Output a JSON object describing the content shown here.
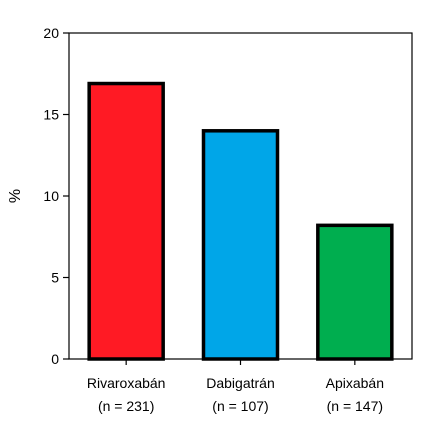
{
  "chart_data": {
    "type": "bar",
    "categories": [
      "Rivaroxabán",
      "Dabigatrán",
      "Apixabán"
    ],
    "category_sublabels": [
      "(n = 231)",
      "(n = 107)",
      "(n = 147)"
    ],
    "values": [
      16.9,
      14.0,
      8.2
    ],
    "colors": [
      "#ff1a24",
      "#00a6e8",
      "#00ae4f"
    ],
    "title": "",
    "xlabel": "",
    "ylabel": "%",
    "ylim": [
      0,
      20
    ],
    "yticks": [
      0,
      5,
      10,
      15,
      20
    ],
    "grid": false,
    "legend": "none"
  }
}
